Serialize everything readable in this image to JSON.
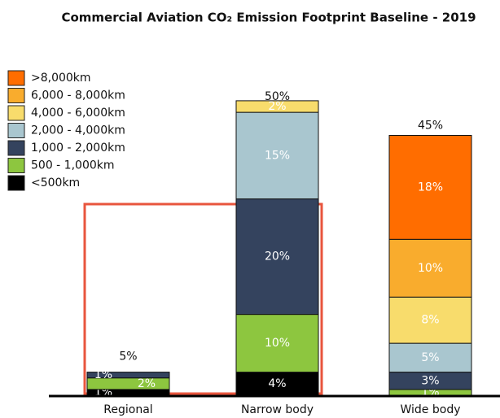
{
  "chart_data": {
    "type": "stacked-bar",
    "title": "Commercial Aviation CO₂ Emission Footprint Baseline - 2019",
    "categories": [
      "Regional",
      "Narrow body",
      "Wide body"
    ],
    "series": [
      {
        "name": "<500km",
        "color": "#000000",
        "values": [
          1,
          4,
          null
        ],
        "value_labels": [
          "1%",
          "4%",
          null
        ]
      },
      {
        "name": "500 - 1,000km",
        "color": "#8dc63f",
        "values": [
          2,
          10,
          1
        ],
        "value_labels": [
          "2%",
          "10%",
          "1%"
        ]
      },
      {
        "name": "1,000 - 2,000km",
        "color": "#34435e",
        "values": [
          1,
          20,
          3
        ],
        "value_labels": [
          "1%",
          "20%",
          "3%"
        ]
      },
      {
        "name": "2,000 - 4,000km",
        "color": "#a9c6cf",
        "values": [
          null,
          15,
          5
        ],
        "value_labels": [
          null,
          "15%",
          "5%"
        ]
      },
      {
        "name": "4,000 - 6,000km",
        "color": "#f8dc6c",
        "values": [
          null,
          2,
          8
        ],
        "value_labels": [
          null,
          "2%",
          "8%"
        ]
      },
      {
        "name": "6,000 - 8,000km",
        "color": "#f9ac2d",
        "values": [
          null,
          null,
          10
        ],
        "value_labels": [
          null,
          null,
          "10%"
        ]
      },
      {
        "name": ">8,000km",
        "color": "#ff6d00",
        "values": [
          null,
          null,
          18
        ],
        "value_labels": [
          null,
          null,
          "18%"
        ]
      }
    ],
    "totals": [
      5,
      50,
      45
    ],
    "total_labels": [
      "5%",
      "50%",
      "45%"
    ]
  }
}
